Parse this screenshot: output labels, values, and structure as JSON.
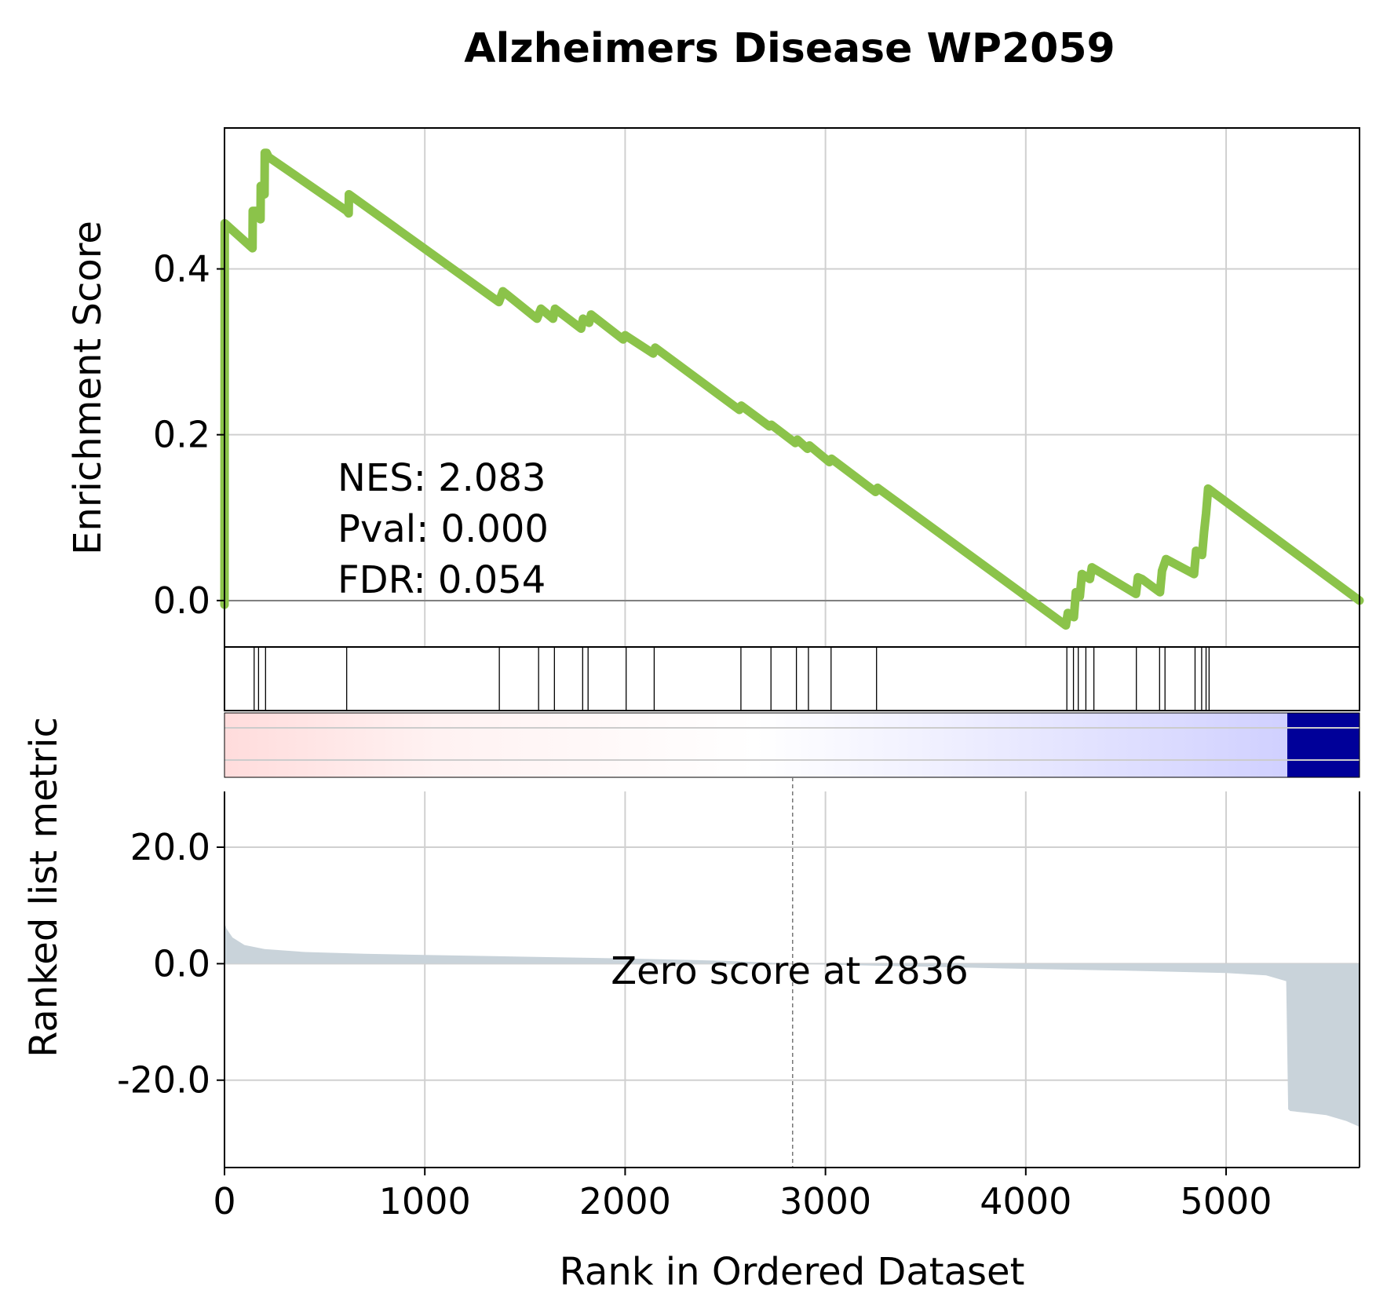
{
  "chart_data": {
    "type": "line",
    "title": "Alzheimers Disease WP2059",
    "xlabel": "Rank in Ordered Dataset",
    "x_ticks": [
      "0",
      "1000",
      "2000",
      "3000",
      "4000",
      "5000"
    ],
    "xlim": [
      0,
      5666
    ],
    "enrichment": {
      "ylabel": "Enrichment Score",
      "y_ticks": [
        "0.0",
        "0.2",
        "0.4"
      ],
      "ylim": [
        -0.056,
        0.57
      ],
      "grid": true,
      "line_color": "#8bc34a",
      "series": [
        {
          "x": [
            0,
            1,
            140,
            141,
            160,
            180,
            181,
            190,
            200,
            201,
            210,
            220,
            610,
            620,
            621,
            1370,
            1390,
            1560,
            1580,
            1640,
            1650,
            1780,
            1790,
            1820,
            1830,
            1990,
            2000,
            2140,
            2150,
            2570,
            2580,
            2720,
            2730,
            2850,
            2860,
            2910,
            2920,
            3020,
            3030,
            3250,
            3260,
            4200,
            4210,
            4240,
            4250,
            4270,
            4280,
            4320,
            4330,
            4550,
            4560,
            4580,
            4670,
            4680,
            4700,
            4840,
            4850,
            4880,
            4890,
            4900,
            4910,
            5666
          ],
          "y": [
            -0.005,
            0.455,
            0.425,
            0.47,
            0.47,
            0.46,
            0.5,
            0.5,
            0.49,
            0.54,
            0.54,
            0.535,
            0.47,
            0.467,
            0.49,
            0.36,
            0.373,
            0.34,
            0.352,
            0.34,
            0.352,
            0.328,
            0.34,
            0.335,
            0.345,
            0.315,
            0.32,
            0.298,
            0.305,
            0.23,
            0.235,
            0.21,
            0.212,
            0.19,
            0.194,
            0.183,
            0.187,
            0.167,
            0.171,
            0.131,
            0.136,
            -0.03,
            -0.015,
            -0.02,
            0.01,
            0.005,
            0.032,
            0.026,
            0.04,
            0.008,
            0.028,
            0.026,
            0.01,
            0.036,
            0.05,
            0.032,
            0.06,
            0.055,
            0.083,
            0.105,
            0.135,
            0.0
          ]
        }
      ]
    },
    "annotations": [
      "NES: 2.083",
      "Pval: 0.000",
      "FDR: 0.054"
    ],
    "hits": [
      148,
      170,
      205,
      610,
      1372,
      1568,
      1647,
      1788,
      1815,
      2005,
      2145,
      2578,
      2728,
      2855,
      2915,
      3028,
      3255,
      4205,
      4238,
      4262,
      4300,
      4340,
      4552,
      4668,
      4695,
      4845,
      4878,
      4900,
      4915
    ],
    "heatmap": {
      "colors": [
        "#ffdcdc",
        "#fff2f2",
        "#ffffff",
        "#f2f2ff",
        "#d0d0ff",
        "#000099"
      ]
    },
    "ranked_metric": {
      "ylabel": "Ranked list metric",
      "y_ticks": [
        "-20.0",
        "0.0",
        "20.0"
      ],
      "ylim": [
        -35,
        32
      ],
      "fill_color": "#c9d3da",
      "zero_cross": 2836,
      "zero_label": "Zero score at 2836",
      "x": [
        0,
        10,
        40,
        100,
        200,
        400,
        700,
        1000,
        1500,
        2000,
        2500,
        2836,
        3200,
        3600,
        4000,
        4500,
        5000,
        5200,
        5300,
        5310,
        5320,
        5400,
        5500,
        5600,
        5666
      ],
      "y": [
        7,
        6,
        4.5,
        3.2,
        2.5,
        2,
        1.7,
        1.5,
        1.2,
        0.9,
        0.5,
        0,
        -0.3,
        -0.6,
        -0.9,
        -1.2,
        -1.6,
        -2,
        -3,
        -25,
        -25.3,
        -25.6,
        -26,
        -27,
        -28
      ]
    }
  }
}
